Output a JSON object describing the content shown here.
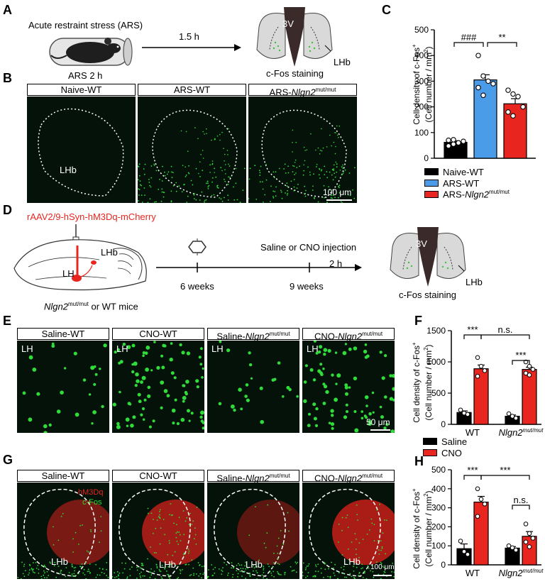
{
  "panel_labels": [
    "A",
    "B",
    "C",
    "D",
    "E",
    "F",
    "G",
    "H"
  ],
  "A": {
    "title": "Acute restraint stress (ARS)",
    "duration": "ARS 2 h",
    "interval": "1.5 h",
    "stain": "c-Fos staining",
    "ventricle": "3V",
    "region": "LHb"
  },
  "B": {
    "titles": [
      "Naive-WT",
      "ARS-WT",
      "ARS-"
    ],
    "genotype_italic": "Nlgn2",
    "genotype_sup": "mut/mut",
    "region": "LHb",
    "scale": "100 μm"
  },
  "D": {
    "virus": "rAAV2/9-hSyn-hM3Dq-mCherry",
    "lh": "LH",
    "lhb": "LHb",
    "mice_italic": "Nlgn2",
    "mice_sup": "mut/mut",
    "mice_suffix": " or WT mice",
    "t1": "6 weeks",
    "t2": "9 weeks",
    "injection": "Saline or CNO injection",
    "interval": "2 h",
    "stain": "c-Fos staining",
    "ventricle": "3V",
    "region": "LHb"
  },
  "E": {
    "titles": [
      "Saline-WT",
      "CNO-WT",
      "Saline-",
      "CNO-"
    ],
    "genotype_italic": "Nlgn2",
    "genotype_sup": "mut/mut",
    "region": "LH",
    "scale": "50 μm"
  },
  "G": {
    "titles": [
      "Saline-WT",
      "CNO-WT",
      "Saline-",
      "CNO-"
    ],
    "genotype_italic": "Nlgn2",
    "genotype_sup": "mut/mut",
    "region": "LHb",
    "marker1": "hM3Dq",
    "marker2": "c-Fos",
    "scale": "100 μm"
  },
  "colors": {
    "black": "#000000",
    "blue": "#4a9be8",
    "red": "#e8251f",
    "green": "#2fdc3a",
    "mcherry": "#c8201a"
  },
  "chart_data": [
    {
      "panel": "C",
      "type": "bar",
      "ytitle_line1": "Cell density of c-Fos",
      "ytitle_sup": "+",
      "ytitle_line2": "(Cell number / mm",
      "ytitle_sup2": "2",
      "ytitle_end": ")",
      "ylim": [
        0,
        500
      ],
      "yticks": [
        "0",
        "100",
        "200",
        "300",
        "400",
        "500"
      ],
      "series": [
        {
          "name": "Naive-WT",
          "color": "#000000",
          "mean": 62,
          "sem": 6,
          "points": [
            48,
            55,
            60,
            66,
            70,
            72
          ]
        },
        {
          "name": "ARS-WT",
          "color": "#4a9be8",
          "mean": 305,
          "sem": 20,
          "points": [
            400,
            320,
            300,
            290,
            275,
            245
          ]
        },
        {
          "name": "ARS-",
          "name_italic": "Nlgn2",
          "name_sup": "mut/mut",
          "color": "#e8251f",
          "mean": 212,
          "sem": 20,
          "points": [
            265,
            250,
            240,
            200,
            180,
            165
          ]
        }
      ],
      "sig": [
        {
          "label": "###",
          "from": 0,
          "to": 1
        },
        {
          "label": "**",
          "from": 1,
          "to": 2
        }
      ]
    },
    {
      "panel": "F",
      "type": "bar",
      "ytitle_line1": "Cell density of c-Fos",
      "ytitle_sup": "+",
      "ytitle_line2": "(Cell number / mm",
      "ytitle_sup2": "2",
      "ytitle_end": ")",
      "ylim": [
        0,
        1500
      ],
      "yticks": [
        "0",
        "500",
        "1000",
        "1500"
      ],
      "categories": [
        "WT",
        "Nlgn2"
      ],
      "category_sup": [
        "",
        "mut/mut"
      ],
      "legend": [
        {
          "name": "Saline",
          "color": "#000000"
        },
        {
          "name": "CNO",
          "color": "#e8251f"
        }
      ],
      "bars": [
        {
          "group": 0,
          "series": "Saline",
          "color": "#000000",
          "mean": 190,
          "sem": 25,
          "points": [
            230,
            180,
            160
          ]
        },
        {
          "group": 0,
          "series": "CNO",
          "color": "#e8251f",
          "mean": 890,
          "sem": 60,
          "points": [
            1070,
            930,
            860,
            770
          ]
        },
        {
          "group": 1,
          "series": "Saline",
          "color": "#000000",
          "mean": 130,
          "sem": 20,
          "points": [
            170,
            130,
            100
          ]
        },
        {
          "group": 1,
          "series": "CNO",
          "color": "#e8251f",
          "mean": 880,
          "sem": 35,
          "points": [
            1000,
            930,
            880,
            820,
            790
          ]
        }
      ],
      "sig": [
        {
          "label": "***",
          "from": 0,
          "to": 1,
          "level": 0
        },
        {
          "label": "n.s.",
          "from": 1,
          "to": 3,
          "level": 0
        },
        {
          "label": "***",
          "from": 2,
          "to": 3,
          "level": 1
        }
      ]
    },
    {
      "panel": "H",
      "type": "bar",
      "ytitle_line1": "Cell density of c-Fos",
      "ytitle_sup": "+",
      "ytitle_line2": "(Cell number / mm",
      "ytitle_sup2": "2",
      "ytitle_end": ")",
      "ylim": [
        0,
        500
      ],
      "yticks": [
        "0",
        "100",
        "200",
        "300",
        "400",
        "500"
      ],
      "categories": [
        "WT",
        "Nlgn2"
      ],
      "category_sup": [
        "",
        "mut/mut"
      ],
      "bars": [
        {
          "group": 0,
          "series": "Saline",
          "color": "#000000",
          "mean": 85,
          "sem": 25,
          "points": [
            125,
            70,
            55
          ]
        },
        {
          "group": 0,
          "series": "CNO",
          "color": "#e8251f",
          "mean": 330,
          "sem": 30,
          "points": [
            400,
            345,
            320,
            255
          ]
        },
        {
          "group": 1,
          "series": "Saline",
          "color": "#000000",
          "mean": 88,
          "sem": 8,
          "points": [
            100,
            90,
            78
          ]
        },
        {
          "group": 1,
          "series": "CNO",
          "color": "#e8251f",
          "mean": 150,
          "sem": 25,
          "points": [
            215,
            165,
            140,
            120,
            95
          ]
        }
      ],
      "sig": [
        {
          "label": "***",
          "from": 0,
          "to": 1,
          "level": 1
        },
        {
          "label": "***",
          "from": 1,
          "to": 3,
          "level": 1
        },
        {
          "label": "n.s.",
          "from": 2,
          "to": 3,
          "level": 0
        }
      ]
    }
  ]
}
